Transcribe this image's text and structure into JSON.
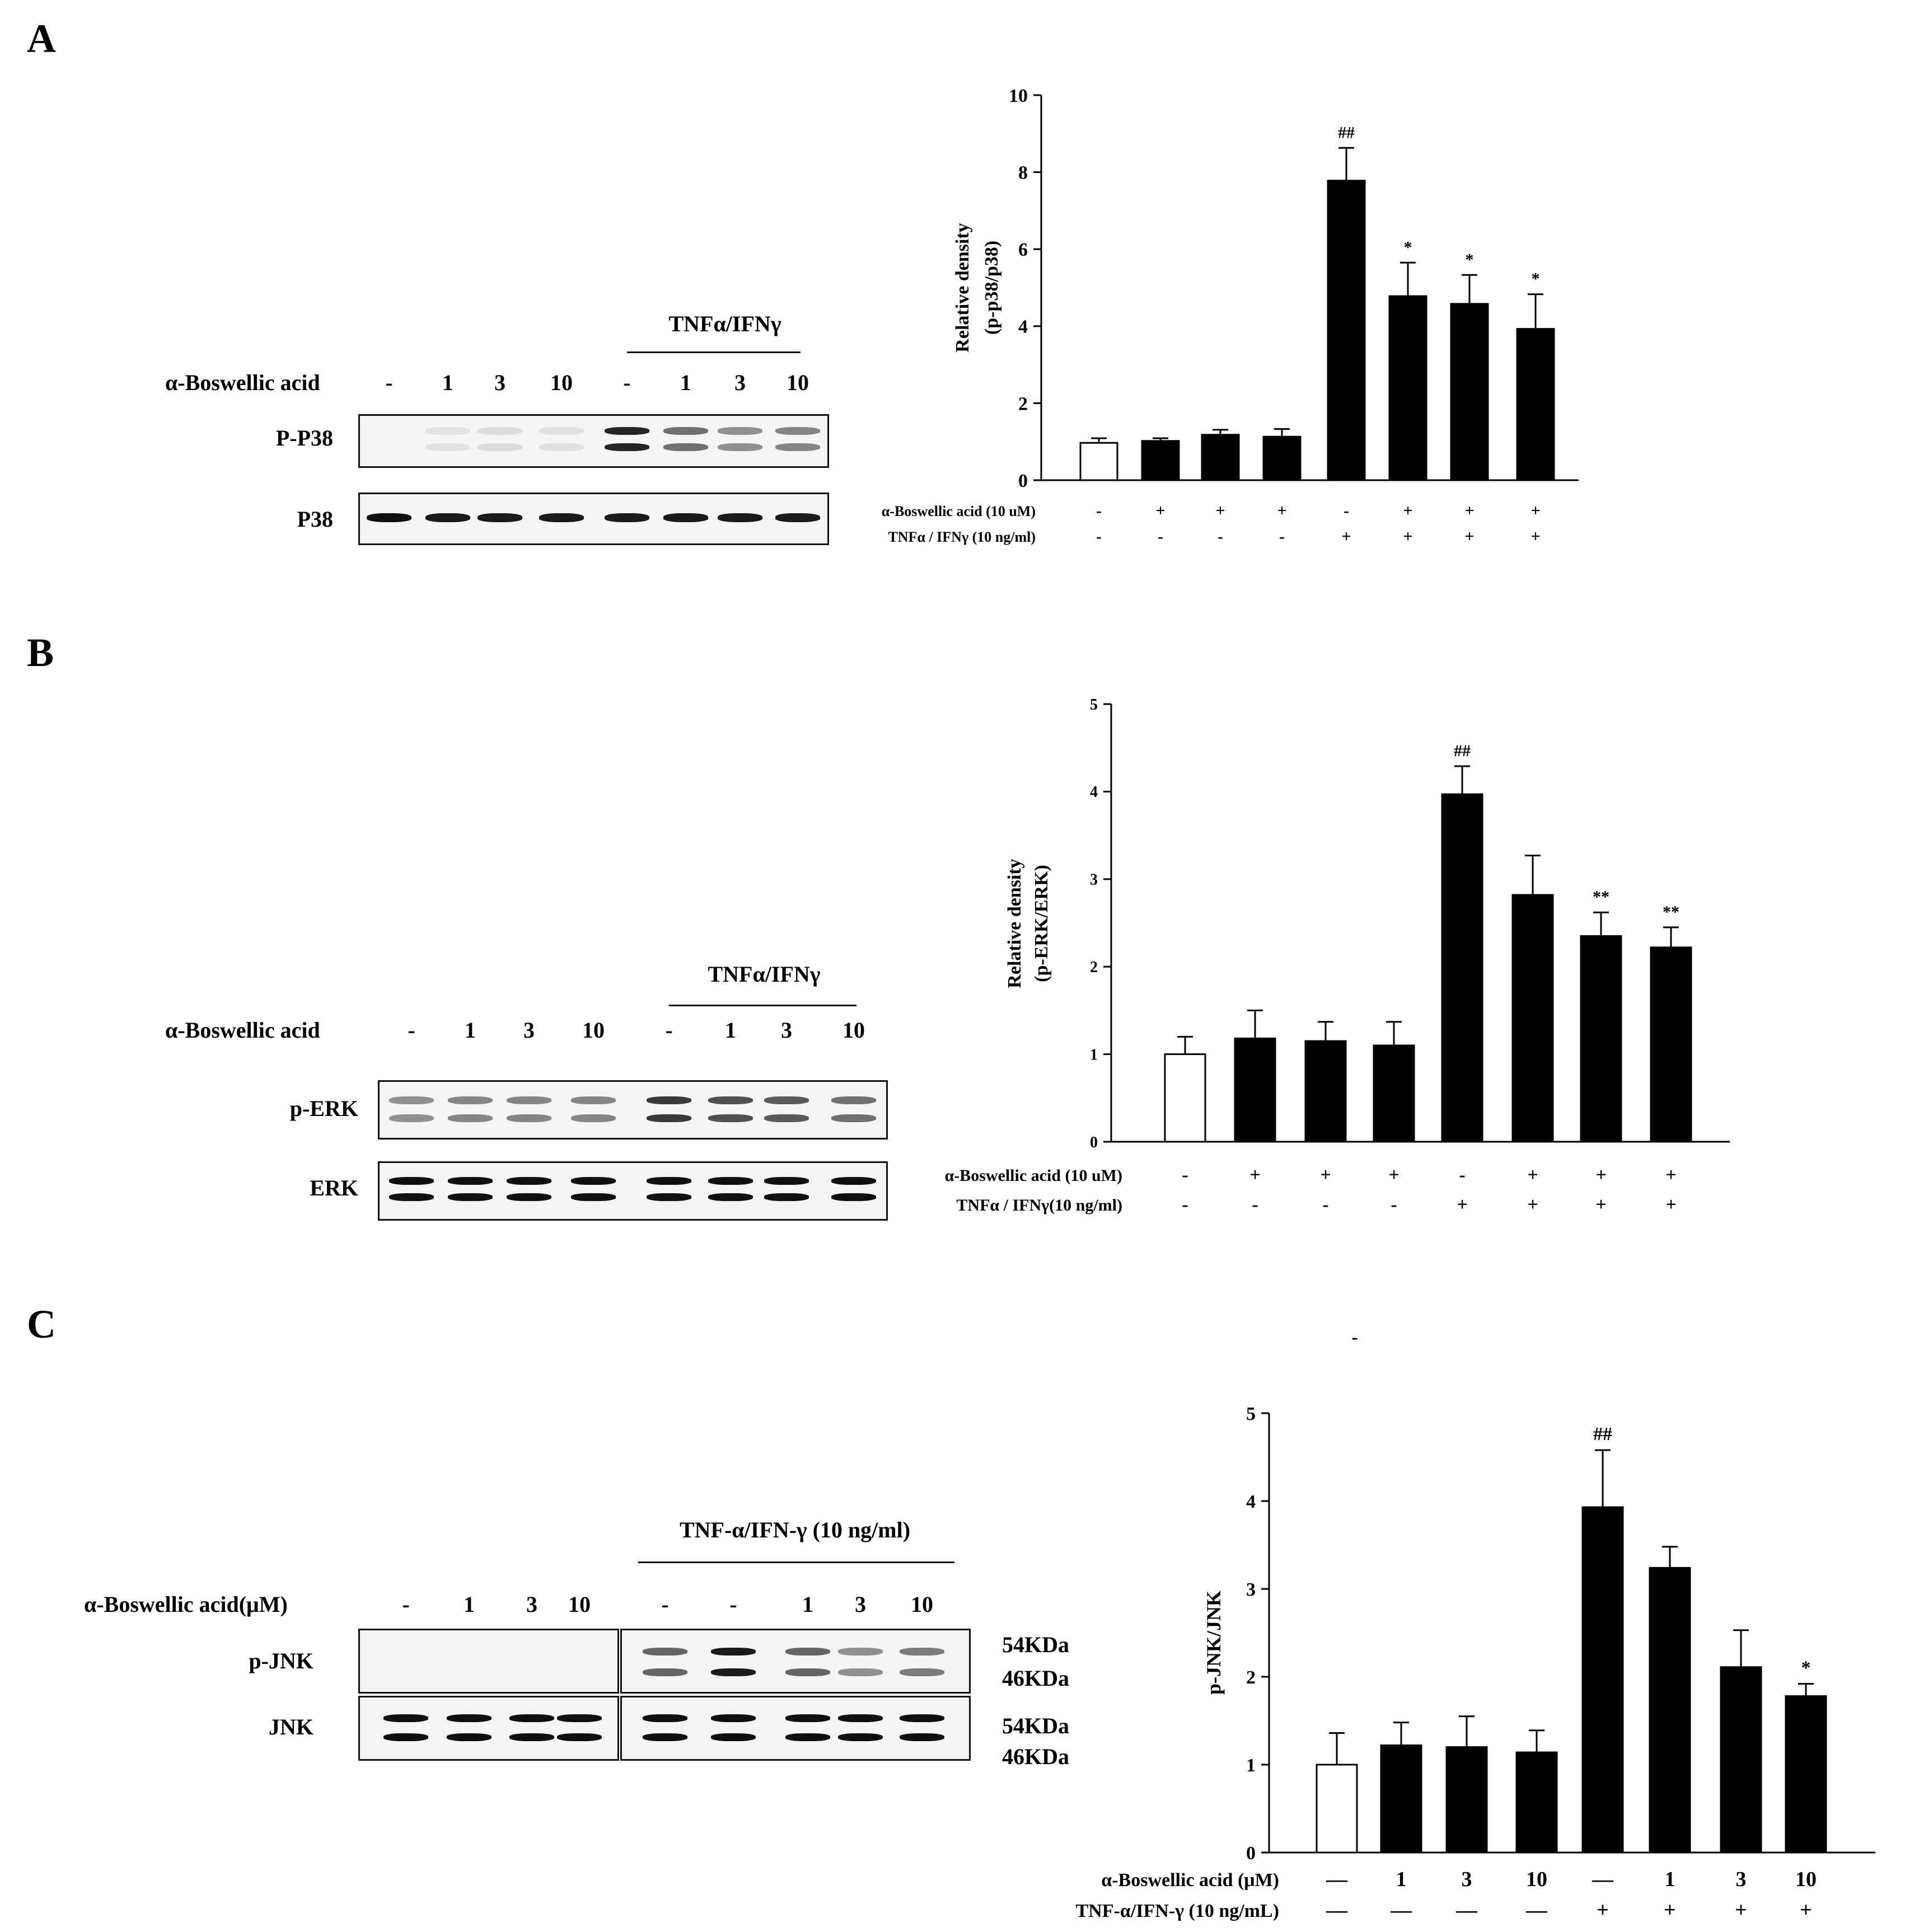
{
  "panel_labels": [
    "A",
    "B",
    "C"
  ],
  "blots": [
    {
      "id": "A",
      "treatment_header": "TNFα/IFNγ",
      "row_label": "α-Boswellic acid",
      "lanes": [
        "-",
        "1",
        "3",
        "10",
        "-",
        "1",
        "3",
        "10"
      ],
      "rows": [
        {
          "label": "P-P38",
          "band_intensity": [
            0.0,
            0.02,
            0.05,
            0.03,
            0.9,
            0.55,
            0.4,
            0.45
          ],
          "doublet": true
        },
        {
          "label": "P38",
          "band_intensity": [
            1,
            0.95,
            0.95,
            0.95,
            0.95,
            0.95,
            0.95,
            0.95
          ],
          "doublet": false
        }
      ]
    },
    {
      "id": "B",
      "treatment_header": "TNFα/IFNγ",
      "row_label": "α-Boswellic acid",
      "lanes": [
        "-",
        "1",
        "3",
        "10",
        "-",
        "1",
        "3",
        "10"
      ],
      "rows": [
        {
          "label": "p-ERK",
          "band_intensity": [
            0.4,
            0.45,
            0.45,
            0.45,
            0.8,
            0.7,
            0.65,
            0.55
          ],
          "doublet": true
        },
        {
          "label": "ERK",
          "band_intensity": [
            1,
            1,
            1,
            1,
            1,
            1,
            1,
            1
          ],
          "doublet": true
        }
      ]
    },
    {
      "id": "C",
      "treatment_header": "TNF-α/IFN-γ (10 ng/ml)",
      "row_label": "α-Boswellic acid(μM)",
      "lanes": [
        "-",
        "1",
        "3",
        "10",
        "-",
        "-",
        "1",
        "3",
        "10"
      ],
      "rows": [
        {
          "label": "p-JNK",
          "band_intensity": [
            0,
            0,
            0,
            0,
            0.6,
            0.95,
            0.6,
            0.4,
            0.5
          ],
          "doublet": true
        },
        {
          "label": "JNK",
          "band_intensity": [
            1,
            1,
            1,
            1,
            1,
            1,
            1,
            1,
            1
          ],
          "doublet": true
        }
      ],
      "mw_markers": [
        "54KDa",
        "46KDa",
        "54KDa",
        "46KDa"
      ]
    }
  ],
  "chart_data": [
    {
      "type": "bar",
      "panel": "A",
      "ylabel_lines": [
        "Relative density",
        "(p-p38/p38)"
      ],
      "ylim": [
        0,
        10
      ],
      "yticks": [
        0,
        2,
        4,
        6,
        8,
        10
      ],
      "values": [
        0.97,
        1.02,
        1.18,
        1.13,
        7.78,
        4.78,
        4.58,
        3.93
      ],
      "errors": [
        0.12,
        0.07,
        0.13,
        0.2,
        0.85,
        0.87,
        0.75,
        0.9
      ],
      "fills": [
        "open",
        "solid",
        "solid",
        "solid",
        "solid",
        "solid",
        "solid",
        "solid"
      ],
      "annotations": [
        "",
        "",
        "",
        "",
        "##",
        "*",
        "*",
        "*"
      ],
      "conditions": [
        {
          "label": "α-Boswellic acid (10 uM)",
          "values": [
            "-",
            "+",
            "+",
            "+",
            "-",
            "+",
            "+",
            "+"
          ]
        },
        {
          "label": "TNFα / IFNγ (10 ng/ml)",
          "values": [
            "-",
            "-",
            "-",
            "-",
            "+",
            "+",
            "+",
            "+"
          ]
        }
      ]
    },
    {
      "type": "bar",
      "panel": "B",
      "ylabel_lines": [
        "Relative density",
        "(p-ERK/ERK)"
      ],
      "ylim": [
        0,
        5
      ],
      "yticks": [
        0,
        1,
        2,
        3,
        4,
        5
      ],
      "values": [
        1.0,
        1.18,
        1.15,
        1.1,
        3.97,
        2.82,
        2.35,
        2.22
      ],
      "errors": [
        0.2,
        0.32,
        0.22,
        0.27,
        0.32,
        0.45,
        0.27,
        0.23
      ],
      "fills": [
        "open",
        "solid",
        "solid",
        "solid",
        "solid",
        "solid",
        "solid",
        "solid"
      ],
      "annotations": [
        "",
        "",
        "",
        "",
        "##",
        "",
        "**",
        "**"
      ],
      "conditions": [
        {
          "label": "α-Boswellic acid (10 uM)",
          "values": [
            "-",
            "+",
            "+",
            "+",
            "-",
            "+",
            "+",
            "+"
          ]
        },
        {
          "label": "TNFα / IFNγ(10 ng/ml)",
          "values": [
            "-",
            "-",
            "-",
            "-",
            "+",
            "+",
            "+",
            "+"
          ]
        }
      ]
    },
    {
      "type": "bar",
      "panel": "C",
      "ylabel_lines": [
        "p-JNK/JNK"
      ],
      "ylim": [
        0,
        5
      ],
      "yticks": [
        0,
        1,
        2,
        3,
        4,
        5
      ],
      "values": [
        1.0,
        1.22,
        1.2,
        1.14,
        3.93,
        3.24,
        2.11,
        1.78
      ],
      "errors": [
        0.36,
        0.26,
        0.35,
        0.25,
        0.65,
        0.24,
        0.42,
        0.14
      ],
      "fills": [
        "open",
        "solid",
        "solid",
        "solid",
        "solid",
        "solid",
        "solid",
        "solid"
      ],
      "annotations": [
        "",
        "",
        "",
        "",
        "##",
        "",
        "",
        "*"
      ],
      "conditions": [
        {
          "label": "α-Boswellic acid (μM)",
          "values": [
            "—",
            "1",
            "3",
            "10",
            "—",
            "1",
            "3",
            "10"
          ]
        },
        {
          "label": "TNF-α/IFN-γ (10 ng/mL)",
          "values": [
            "—",
            "—",
            "—",
            "—",
            "+",
            "+",
            "+",
            "+"
          ]
        }
      ],
      "stray_mark": "-"
    }
  ]
}
